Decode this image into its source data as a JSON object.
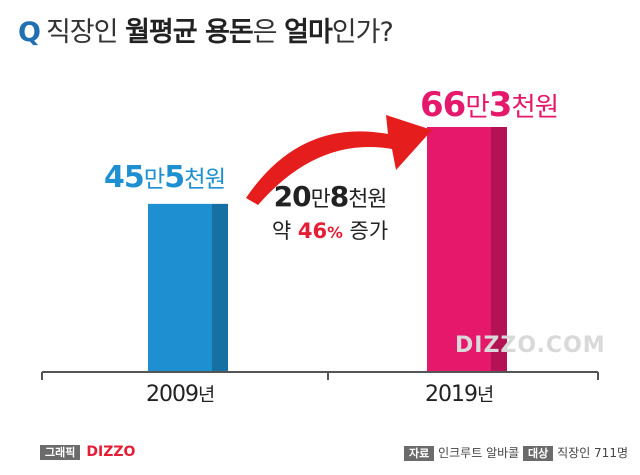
{
  "header": {
    "q": "Q",
    "parts": [
      {
        "text": "직장인 ",
        "style": "light"
      },
      {
        "text": "월평균 용돈",
        "style": "bold"
      },
      {
        "text": "은 ",
        "style": "light"
      },
      {
        "text": "얼마",
        "style": "bold"
      },
      {
        "text": "인가?",
        "style": "light"
      }
    ]
  },
  "chart_data": {
    "type": "bar",
    "categories": [
      "2009년",
      "2019년"
    ],
    "values": [
      455000,
      663000
    ],
    "value_labels": [
      {
        "num1": "45",
        "unit1": "만",
        "num2": "5",
        "unit2": "천원"
      },
      {
        "num1": "66",
        "unit1": "만",
        "num2": "3",
        "unit2": "천원"
      }
    ],
    "ylim": [
      0,
      663000
    ],
    "colors": [
      "#1e8fd0",
      "#e5186c"
    ],
    "annotation": {
      "diff_num1": "20",
      "diff_unit1": "만",
      "diff_num2": "8",
      "diff_unit2": "천원",
      "pre": "약 ",
      "pct": "46",
      "pct_sign": "%",
      "post": " 증가"
    },
    "x_labels": [
      {
        "num": "2009",
        "unit": "년"
      },
      {
        "num": "2019",
        "unit": "년"
      }
    ]
  },
  "watermark": "DIZZO.COM",
  "footer": {
    "graphic_tag": "그래픽",
    "brand": "DIZZO",
    "source_tag": "자료",
    "source": "인크루트 알바콜",
    "target_tag": "대상",
    "target": "직장인 711명"
  },
  "colors": {
    "arrow": "#e51d1d",
    "axis": "#555555"
  }
}
